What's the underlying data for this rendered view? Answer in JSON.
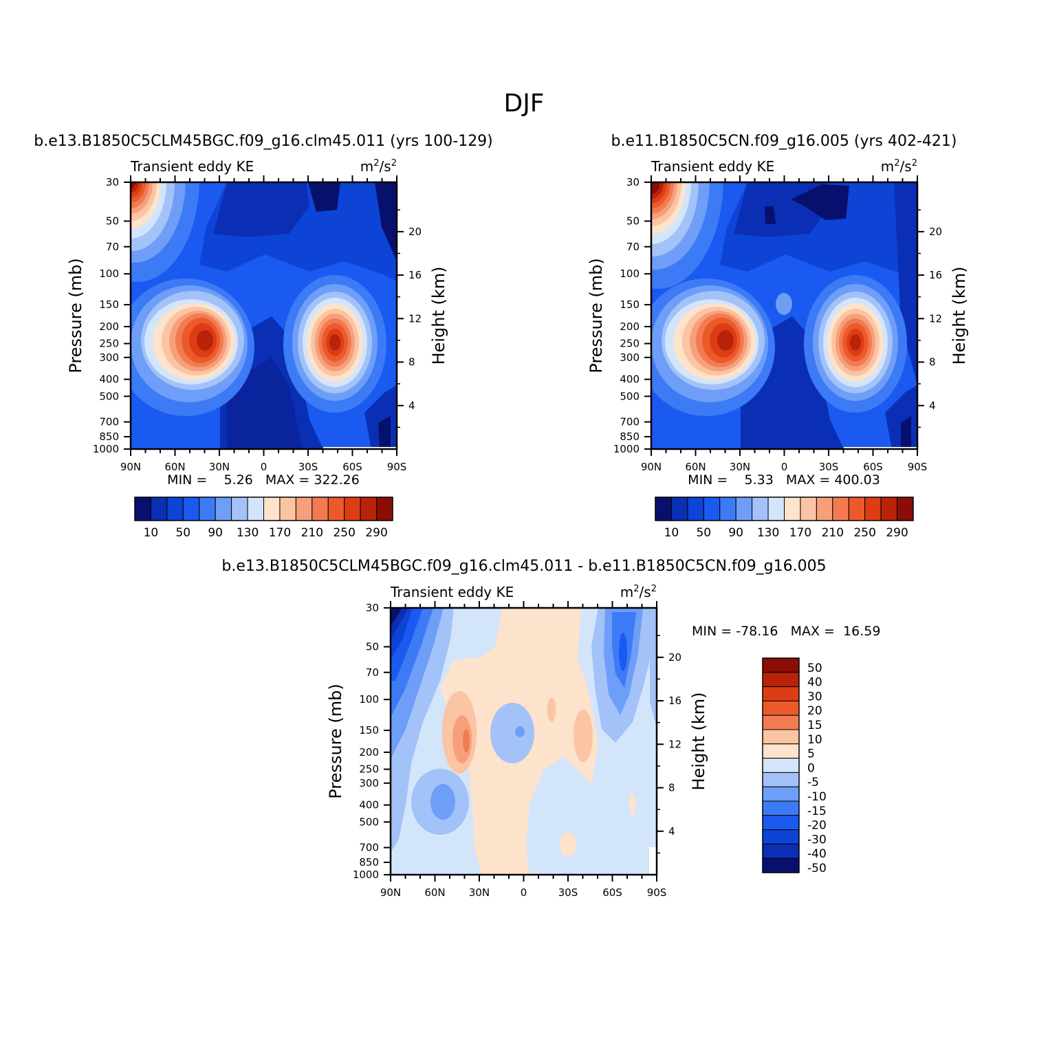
{
  "figure": {
    "title": "DJF"
  },
  "chart_data": [
    {
      "type": "heatmap",
      "title": "b.e13.B1850C5CLM45BGC.f09_g16.clm45.011 (yrs 100-129)",
      "left_string": "Transient eddy KE",
      "right_string": "m²/s²",
      "xlabel": "",
      "ylabel": "Pressure (mb)",
      "y2label": "Height (km)",
      "x_ticks": [
        "90N",
        "60N",
        "30N",
        "0",
        "30S",
        "60S",
        "90S"
      ],
      "y_ticks": [
        "30",
        "50",
        "70",
        "100",
        "150",
        "200",
        "250",
        "300",
        "400",
        "500",
        "700",
        "850",
        "1000"
      ],
      "y2_ticks": [
        "20",
        "16",
        "12",
        "8",
        "4"
      ],
      "stats": "MIN =    5.26   MAX = 322.26",
      "colorbar": {
        "levels": [
          "10",
          "50",
          "90",
          "130",
          "170",
          "210",
          "250",
          "290"
        ],
        "colors": [
          "#08106e",
          "#0a2fb5",
          "#0d44d6",
          "#1a5af0",
          "#3d7af5",
          "#6e9ef7",
          "#a3c2f8",
          "#d3e5fb",
          "#fde2cc",
          "#fbc4a3",
          "#f6a07b",
          "#f27b52",
          "#ec5a2c",
          "#dd3d14",
          "#b8230a",
          "#8c0d05"
        ]
      },
      "features": [
        {
          "lat": 40,
          "p": 280,
          "value": 320
        },
        {
          "lat": -48,
          "p": 260,
          "value": 310
        },
        {
          "lat": 90,
          "p": 30,
          "value": 322
        }
      ]
    },
    {
      "type": "heatmap",
      "title": "b.e11.B1850C5CN.f09_g16.005 (yrs 402-421)",
      "left_string": "Transient eddy KE",
      "right_string": "m²/s²",
      "xlabel": "",
      "ylabel": "Pressure (mb)",
      "y2label": "Height (km)",
      "x_ticks": [
        "90N",
        "60N",
        "30N",
        "0",
        "30S",
        "60S",
        "90S"
      ],
      "y_ticks": [
        "30",
        "50",
        "70",
        "100",
        "150",
        "200",
        "250",
        "300",
        "400",
        "500",
        "700",
        "850",
        "1000"
      ],
      "y2_ticks": [
        "20",
        "16",
        "12",
        "8",
        "4"
      ],
      "stats": "MIN =    5.33   MAX = 400.03",
      "colorbar": {
        "levels": [
          "10",
          "50",
          "90",
          "130",
          "170",
          "210",
          "250",
          "290"
        ],
        "colors": [
          "#08106e",
          "#0a2fb5",
          "#0d44d6",
          "#1a5af0",
          "#3d7af5",
          "#6e9ef7",
          "#a3c2f8",
          "#d3e5fb",
          "#fde2cc",
          "#fbc4a3",
          "#f6a07b",
          "#f27b52",
          "#ec5a2c",
          "#dd3d14",
          "#b8230a",
          "#8c0d05"
        ]
      },
      "features": [
        {
          "lat": 40,
          "p": 280,
          "value": 300
        },
        {
          "lat": -48,
          "p": 260,
          "value": 300
        },
        {
          "lat": 90,
          "p": 30,
          "value": 400
        }
      ]
    },
    {
      "type": "heatmap",
      "title": "b.e13.B1850C5CLM45BGC.f09_g16.clm45.011 - b.e11.B1850C5CN.f09_g16.005",
      "left_string": "Transient eddy KE",
      "right_string": "m²/s²",
      "xlabel": "",
      "ylabel": "Pressure (mb)",
      "y2label": "Height (km)",
      "x_ticks": [
        "90N",
        "60N",
        "30N",
        "0",
        "30S",
        "60S",
        "90S"
      ],
      "y_ticks": [
        "30",
        "50",
        "70",
        "100",
        "150",
        "200",
        "250",
        "300",
        "400",
        "500",
        "700",
        "850",
        "1000"
      ],
      "y2_ticks": [
        "20",
        "16",
        "12",
        "8",
        "4"
      ],
      "stats": "MIN = -78.16   MAX =  16.59",
      "colorbar": {
        "levels": [
          "50",
          "40",
          "30",
          "20",
          "15",
          "10",
          "5",
          "0",
          "-5",
          "-10",
          "-15",
          "-20",
          "-30",
          "-40",
          "-50"
        ],
        "colors": [
          "#8c0d05",
          "#b8230a",
          "#dd3d14",
          "#ec5a2c",
          "#f27b52",
          "#fbc4a3",
          "#fde2cc",
          "#d3e5fb",
          "#a3c2f8",
          "#6e9ef7",
          "#3d7af5",
          "#1a5af0",
          "#0d44d6",
          "#0a2fb5",
          "#08106e"
        ]
      },
      "features": [
        {
          "lat": 90,
          "p": 30,
          "value": -78
        },
        {
          "lat": 38,
          "p": 170,
          "value": 16
        },
        {
          "lat": -65,
          "p": 60,
          "value": -25
        }
      ]
    }
  ]
}
